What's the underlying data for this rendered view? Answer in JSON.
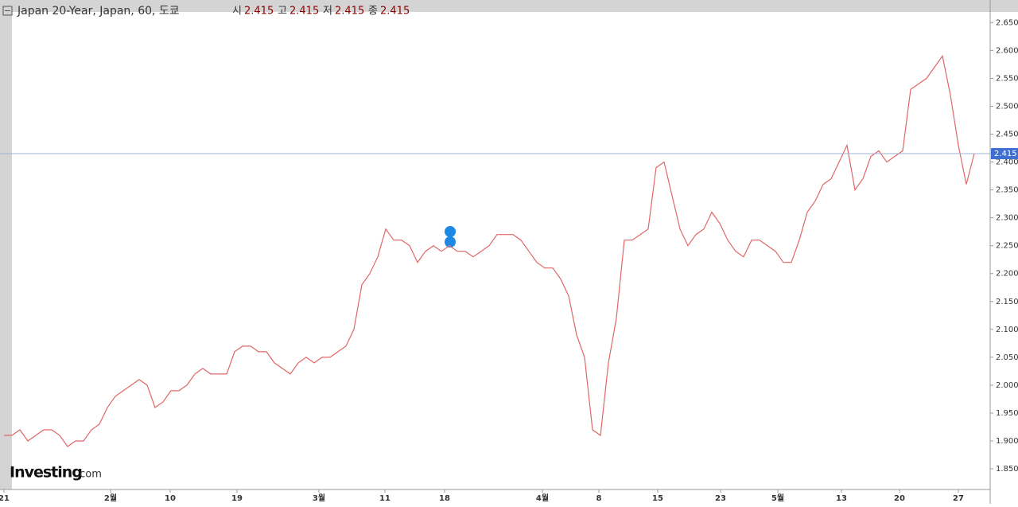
{
  "chart_data": {
    "type": "line",
    "title": "Japan 20-Year, Japan, 60, 도쿄",
    "ohlc_names": [
      "시",
      "고",
      "저",
      "종"
    ],
    "ohlc_values": [
      2.415,
      2.415,
      2.415,
      2.415
    ],
    "last_price": 2.415,
    "logo": [
      "Investing",
      ".com"
    ],
    "series": [
      {
        "name": "Japan 20-Year",
        "color": "#e06666",
        "values": [
          1.91,
          1.91,
          1.92,
          1.9,
          1.91,
          1.92,
          1.92,
          1.91,
          1.89,
          1.9,
          1.9,
          1.92,
          1.93,
          1.96,
          1.98,
          1.99,
          2.0,
          2.01,
          2.0,
          1.96,
          1.97,
          1.99,
          1.99,
          2.0,
          2.02,
          2.03,
          2.02,
          2.02,
          2.02,
          2.06,
          2.07,
          2.07,
          2.06,
          2.06,
          2.04,
          2.03,
          2.02,
          2.04,
          2.05,
          2.04,
          2.05,
          2.05,
          2.06,
          2.07,
          2.1,
          2.18,
          2.2,
          2.23,
          2.28,
          2.26,
          2.26,
          2.25,
          2.22,
          2.24,
          2.25,
          2.24,
          2.25,
          2.24,
          2.24,
          2.23,
          2.24,
          2.25,
          2.27,
          2.27,
          2.27,
          2.26,
          2.24,
          2.22,
          2.21,
          2.21,
          2.19,
          2.16,
          2.09,
          2.05,
          1.92,
          1.91,
          2.04,
          2.12,
          2.26,
          2.26,
          2.27,
          2.28,
          2.39,
          2.4,
          2.34,
          2.28,
          2.25,
          2.27,
          2.28,
          2.31,
          2.29,
          2.26,
          2.24,
          2.23,
          2.26,
          2.26,
          2.25,
          2.24,
          2.22,
          2.22,
          2.26,
          2.31,
          2.33,
          2.36,
          2.37,
          2.4,
          2.43,
          2.35,
          2.37,
          2.41,
          2.42,
          2.4,
          2.41,
          2.42,
          2.53,
          2.54,
          2.55,
          2.57,
          2.59,
          2.52,
          2.43,
          2.36,
          2.415
        ]
      }
    ],
    "xlim": [
      -0.5,
      124
    ],
    "xticks": [
      {
        "value": 0,
        "label": "21"
      },
      {
        "value": 13.4,
        "label": "2월"
      },
      {
        "value": 20.9,
        "label": "10"
      },
      {
        "value": 29.3,
        "label": "19"
      },
      {
        "value": 39.6,
        "label": "3월"
      },
      {
        "value": 47.9,
        "label": "11"
      },
      {
        "value": 55.4,
        "label": "18"
      },
      {
        "value": 67.7,
        "label": "4월"
      },
      {
        "value": 74.8,
        "label": "8"
      },
      {
        "value": 82.2,
        "label": "15"
      },
      {
        "value": 90.1,
        "label": "23"
      },
      {
        "value": 97.3,
        "label": "5월"
      },
      {
        "value": 105.3,
        "label": "13"
      },
      {
        "value": 112.6,
        "label": "20"
      },
      {
        "value": 120,
        "label": "27"
      }
    ],
    "ylim": [
      1.813,
      2.669
    ],
    "yticks": [
      {
        "value": 1.85,
        "label": "1.850"
      },
      {
        "value": 1.9,
        "label": "1.900"
      },
      {
        "value": 1.95,
        "label": "1.950"
      },
      {
        "value": 2.0,
        "label": "2.000"
      },
      {
        "value": 2.05,
        "label": "2.050"
      },
      {
        "value": 2.1,
        "label": "2.100"
      },
      {
        "value": 2.15,
        "label": "2.150"
      },
      {
        "value": 2.2,
        "label": "2.200"
      },
      {
        "value": 2.25,
        "label": "2.250"
      },
      {
        "value": 2.3,
        "label": "2.300"
      },
      {
        "value": 2.35,
        "label": "2.350"
      },
      {
        "value": 2.4,
        "label": "2.400"
      },
      {
        "value": 2.45,
        "label": "2.450"
      },
      {
        "value": 2.5,
        "label": "2.500"
      },
      {
        "value": 2.55,
        "label": "2.550"
      },
      {
        "value": 2.6,
        "label": "2.600"
      },
      {
        "value": 2.65,
        "label": "2.650"
      }
    ]
  }
}
